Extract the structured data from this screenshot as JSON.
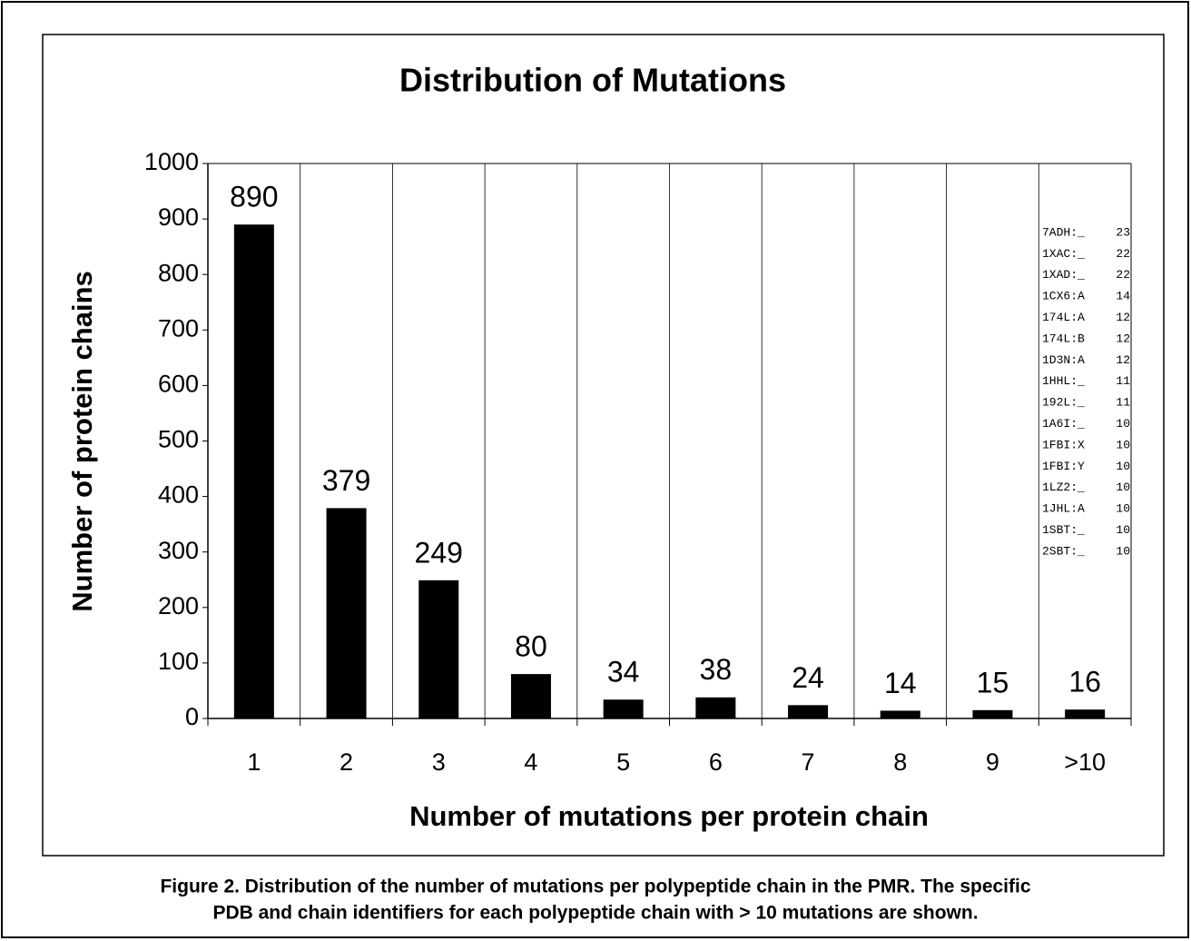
{
  "chart_data": {
    "type": "bar",
    "title": "Distribution of Mutations",
    "x_label": "Number of mutations per protein chain",
    "y_label": "Number of protein chains",
    "categories": [
      "1",
      "2",
      "3",
      "4",
      "5",
      "6",
      "7",
      "8",
      "9",
      ">10"
    ],
    "values": [
      890,
      379,
      249,
      80,
      34,
      38,
      24,
      14,
      15,
      16
    ],
    "color": "#000000",
    "ylim": [
      0,
      1000
    ],
    "yticks": [
      0,
      100,
      200,
      300,
      400,
      500,
      600,
      700,
      800,
      900,
      1000
    ],
    "vertical_grid": true,
    "annotation_list": [
      {
        "id": "7ADH:_",
        "count": 23
      },
      {
        "id": "1XAC:_",
        "count": 22
      },
      {
        "id": "1XAD:_",
        "count": 22
      },
      {
        "id": "1CX6:A",
        "count": 14
      },
      {
        "id": "174L:A",
        "count": 12
      },
      {
        "id": "174L:B",
        "count": 12
      },
      {
        "id": "1D3N:A",
        "count": 12
      },
      {
        "id": "1HHL:_",
        "count": 11
      },
      {
        "id": "192L:_",
        "count": 11
      },
      {
        "id": "1A6I:_",
        "count": 10
      },
      {
        "id": "1FBI:X",
        "count": 10
      },
      {
        "id": "1FBI:Y",
        "count": 10
      },
      {
        "id": "1LZ2:_",
        "count": 10
      },
      {
        "id": "1JHL:A",
        "count": 10
      },
      {
        "id": "1SBT:_",
        "count": 10
      },
      {
        "id": "2SBT:_",
        "count": 10
      }
    ]
  },
  "caption": [
    "Figure 2. Distribution of the number of mutations per polypeptide chain in the PMR. The specific",
    "PDB and chain identifiers for each polypeptide chain with > 10 mutations are shown."
  ]
}
